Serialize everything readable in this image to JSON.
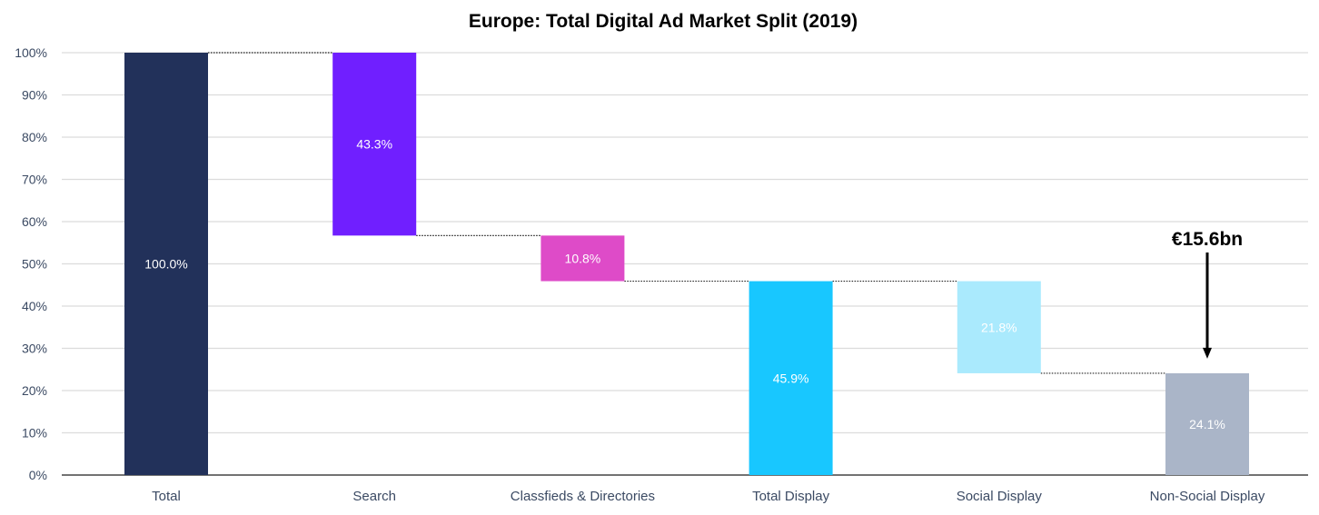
{
  "chart_data": {
    "type": "bar",
    "subtype": "waterfall",
    "title": "Europe: Total Digital Ad Market Split (2019)",
    "xlabel": "",
    "ylabel": "",
    "ylim": [
      0,
      100
    ],
    "yticks": [
      0,
      10,
      20,
      30,
      40,
      50,
      60,
      70,
      80,
      90,
      100
    ],
    "ytick_labels": [
      "0%",
      "10%",
      "20%",
      "30%",
      "40%",
      "50%",
      "60%",
      "70%",
      "80%",
      "90%",
      "100%"
    ],
    "grid": true,
    "categories": [
      "Total",
      "Search",
      "Classfieds & Directories",
      "Total Display",
      "Social Display",
      "Non-Social Display"
    ],
    "values": [
      100.0,
      43.3,
      10.8,
      45.9,
      21.8,
      24.1
    ],
    "bar_bottoms": [
      0,
      56.7,
      45.9,
      0,
      24.1,
      0
    ],
    "bar_tops": [
      100,
      100,
      56.7,
      45.9,
      45.9,
      24.1
    ],
    "data_labels": [
      "100.0%",
      "43.3%",
      "10.8%",
      "45.9%",
      "21.8%",
      "24.1%"
    ],
    "colors": [
      "#22315a",
      "#701fff",
      "#de4bc8",
      "#18c7ff",
      "#aaeafd",
      "#aab5c8"
    ],
    "connector_style": "dotted",
    "annotation": {
      "text": "€15.6bn",
      "target_category": "Non-Social Display",
      "arrow": "down"
    },
    "legend": "none"
  }
}
